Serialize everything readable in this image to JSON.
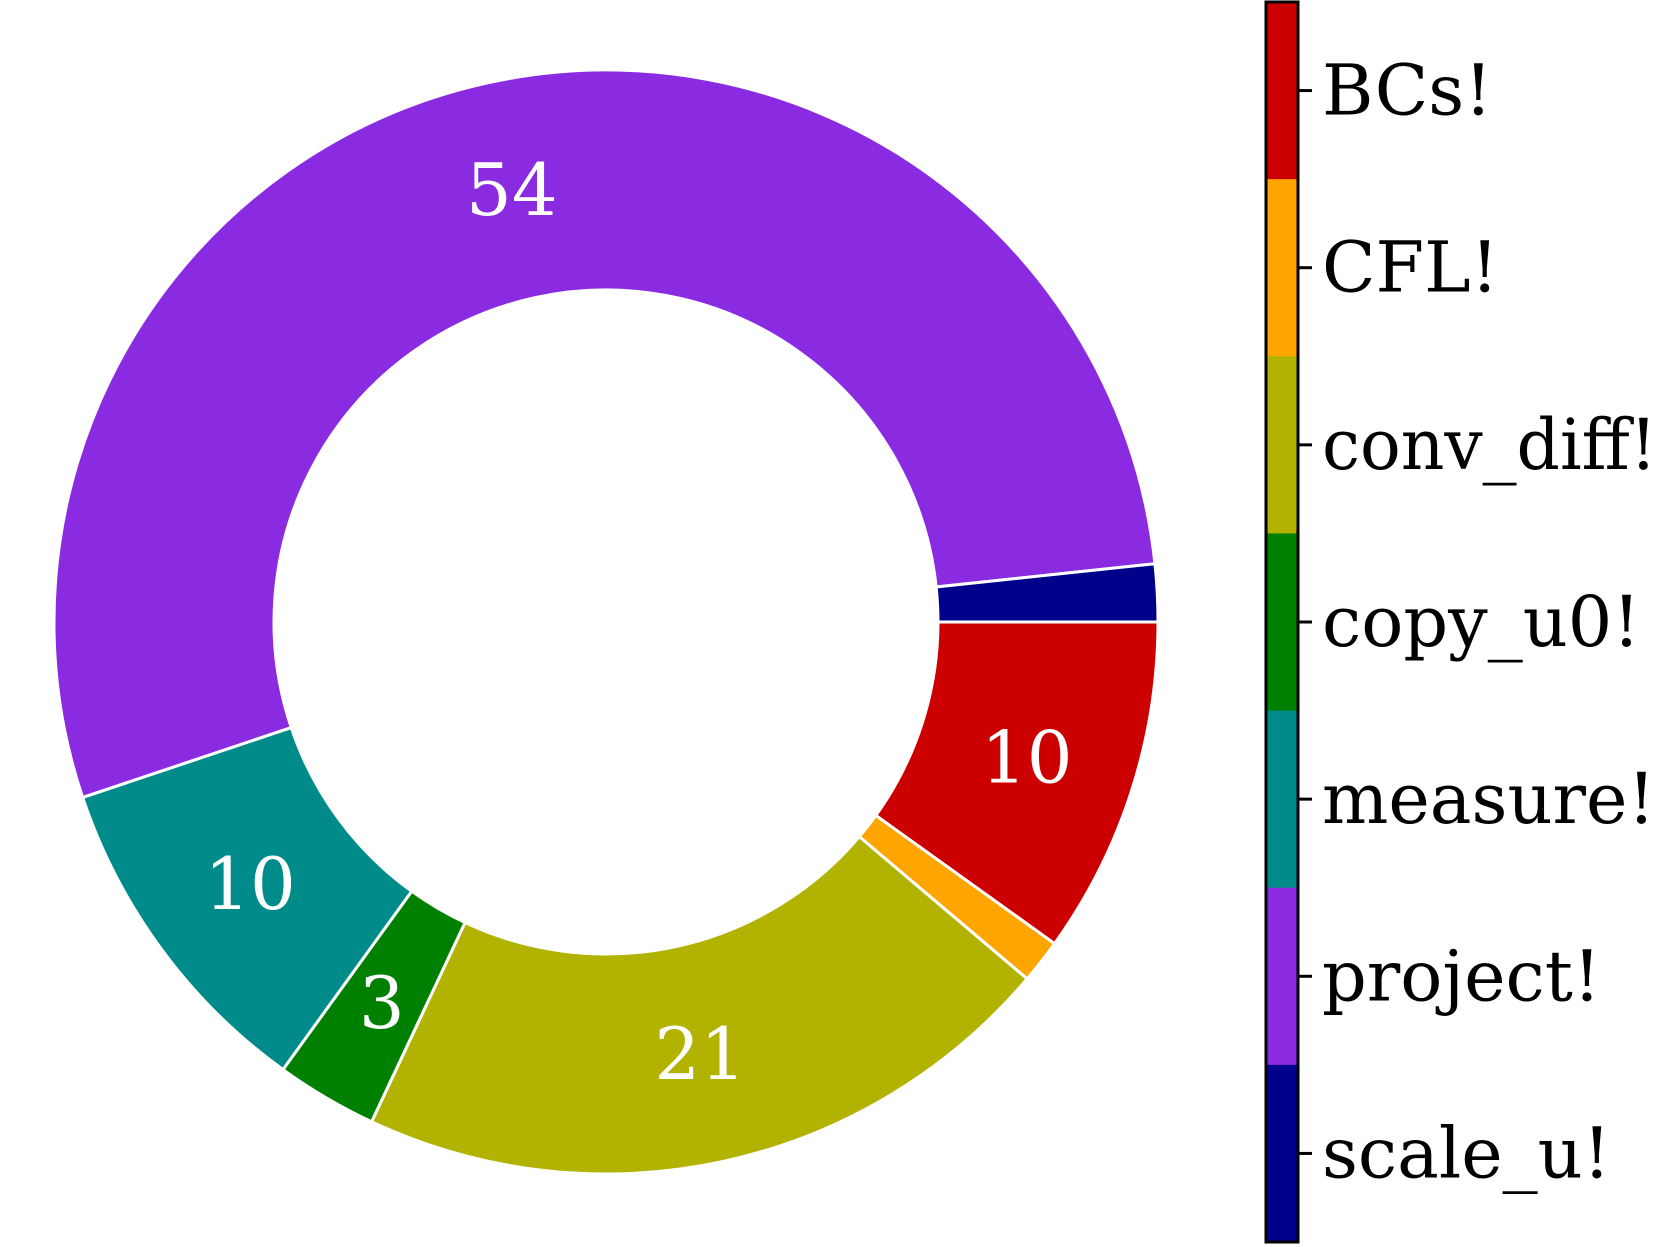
{
  "chart_data": {
    "type": "pie",
    "donut": true,
    "series": [
      {
        "name": "BCs!",
        "value": 10,
        "color": "#cc0000",
        "label": "10"
      },
      {
        "name": "CFL!",
        "value": 1.3,
        "color": "#ffa500",
        "label": ""
      },
      {
        "name": "conv_diff!",
        "value": 21,
        "color": "#b2b200",
        "label": "21"
      },
      {
        "name": "copy_u0!",
        "value": 3,
        "color": "#008000",
        "label": "3"
      },
      {
        "name": "measure!",
        "value": 10,
        "color": "#008b8b",
        "label": "10"
      },
      {
        "name": "project!",
        "value": 54,
        "color": "#8a2be2",
        "label": "54"
      },
      {
        "name": "scale_u!",
        "value": 1.7,
        "color": "#00008b",
        "label": ""
      }
    ],
    "colorbar_labels": [
      "BCs!",
      "CFL!",
      "conv_diff!",
      "copy_u0!",
      "measure!",
      "project!",
      "scale_u!"
    ],
    "legend_placement": "right (colorbar)"
  }
}
